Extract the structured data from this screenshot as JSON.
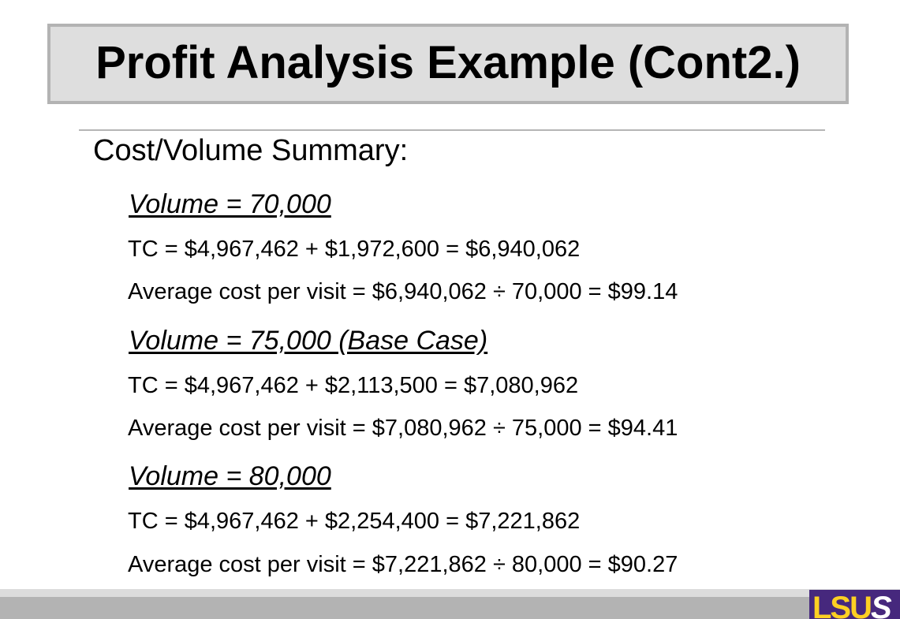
{
  "slide": {
    "title": "Profit Analysis Example (Cont2.)",
    "subtitle": "Cost/Volume Summary:",
    "sections": [
      {
        "heading": "Volume = 70,000",
        "lines": [
          "TC = $4,967,462 + $1,972,600 = $6,940,062",
          "Average cost per visit = $6,940,062 ÷ 70,000 = $99.14"
        ]
      },
      {
        "heading": "Volume = 75,000 (Base Case)",
        "lines": [
          "TC = $4,967,462 + $2,113,500 = $7,080,962",
          "Average cost per visit = $7,080,962 ÷ 75,000 = $94.41"
        ]
      },
      {
        "heading": "Volume = 80,000",
        "lines": [
          "TC = $4,967,462 + $2,254,400 = $7,221,862",
          "Average cost per visit = $7,221,862 ÷ 80,000 = $90.27"
        ]
      }
    ]
  },
  "footer": {
    "logo_text": "LSUS",
    "logo_colors": {
      "background": "#46287d",
      "letters": "#fdd023"
    }
  }
}
